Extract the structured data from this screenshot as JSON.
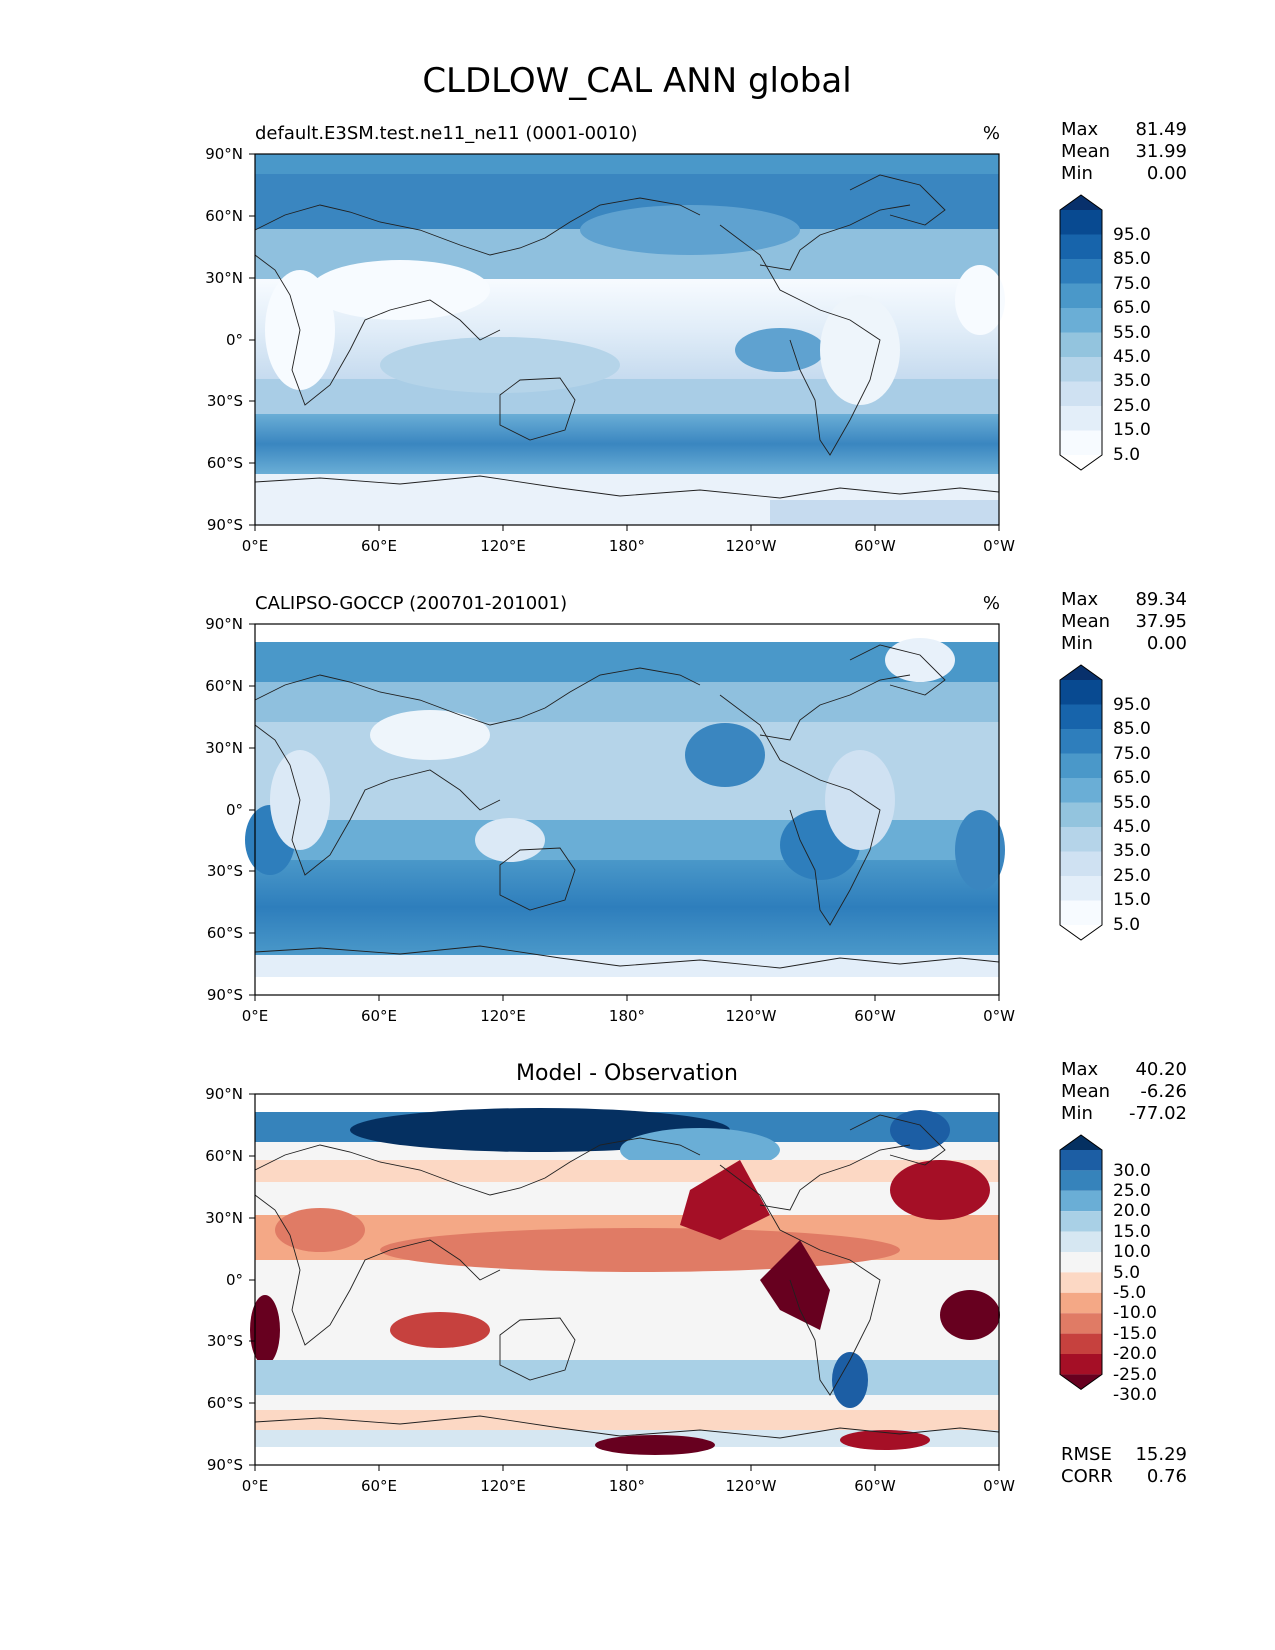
{
  "figure": {
    "title": "CLDLOW_CAL ANN global"
  },
  "axis_labels": {
    "lon": [
      "0°E",
      "60°E",
      "120°E",
      "180°",
      "120°W",
      "60°W",
      "0°W"
    ],
    "lat": [
      "90°N",
      "60°N",
      "30°N",
      "0°",
      "30°S",
      "60°S",
      "90°S"
    ]
  },
  "panels": [
    {
      "id": "test",
      "title_left": "default.E3SM.test.ne11_ne11 (0001-0010)",
      "title_center": "",
      "units": "%",
      "stats": [
        {
          "label": "Max",
          "value": "81.49"
        },
        {
          "label": "Mean",
          "value": "31.99"
        },
        {
          "label": "Min",
          "value": "0.00"
        }
      ],
      "colorbar": {
        "labels": [
          "95.0",
          "85.0",
          "75.0",
          "65.0",
          "55.0",
          "45.0",
          "35.0",
          "25.0",
          "15.0",
          "5.0"
        ],
        "colors": [
          "#f7fbff",
          "#e3eef9",
          "#cfe1f2",
          "#b5d4e9",
          "#93c4de",
          "#6aaed6",
          "#4a98c9",
          "#2e7ebc",
          "#1764ab",
          "#084a91",
          "#08306b"
        ]
      },
      "footer": []
    },
    {
      "id": "ref",
      "title_left": "CALIPSO-GOCCP (200701-201001)",
      "title_center": "",
      "units": "%",
      "stats": [
        {
          "label": "Max",
          "value": "89.34"
        },
        {
          "label": "Mean",
          "value": "37.95"
        },
        {
          "label": "Min",
          "value": "0.00"
        }
      ],
      "colorbar": {
        "labels": [
          "95.0",
          "85.0",
          "75.0",
          "65.0",
          "55.0",
          "45.0",
          "35.0",
          "25.0",
          "15.0",
          "5.0"
        ],
        "colors": [
          "#f7fbff",
          "#e3eef9",
          "#cfe1f2",
          "#b5d4e9",
          "#93c4de",
          "#6aaed6",
          "#4a98c9",
          "#2e7ebc",
          "#1764ab",
          "#084a91",
          "#08306b"
        ]
      },
      "footer": []
    },
    {
      "id": "diff",
      "title_left": "",
      "title_center": "Model - Observation",
      "units": "",
      "stats": [
        {
          "label": "Max",
          "value": "40.20"
        },
        {
          "label": "Mean",
          "value": "-6.26"
        },
        {
          "label": "Min",
          "value": "-77.02"
        }
      ],
      "colorbar": {
        "labels": [
          "30.0",
          "25.0",
          "20.0",
          "15.0",
          "10.0",
          "5.0",
          "-5.0",
          "-10.0",
          "-15.0",
          "-20.0",
          "-25.0",
          "-30.0"
        ],
        "colors": [
          "#67001f",
          "#a50f26",
          "#c6413e",
          "#e07b65",
          "#f4a886",
          "#fcd8c4",
          "#f5f5f5",
          "#d6e7f2",
          "#a9d0e6",
          "#6aaed6",
          "#3683bb",
          "#1c5ea4",
          "#053061"
        ]
      },
      "footer": [
        {
          "label": "RMSE",
          "value": "15.29"
        },
        {
          "label": "CORR",
          "value": "0.76"
        }
      ]
    }
  ]
}
